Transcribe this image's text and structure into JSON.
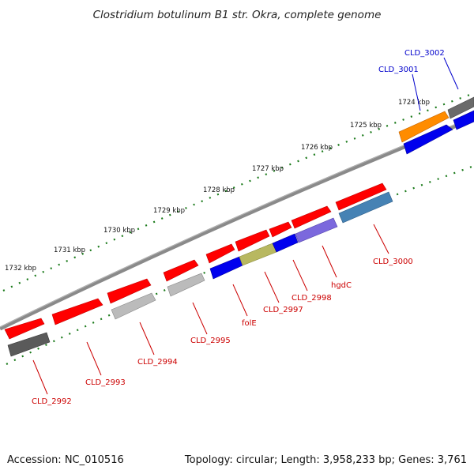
{
  "title": "Clostridium botulinum B1 str. Okra, complete genome",
  "footer": {
    "accession": "Accession: NC_010516",
    "summary": "Topology: circular; Length: 3,958,233 bp; Genes: 3,761"
  },
  "colors": {
    "backbone": "#7a7a7a",
    "tick": "#1a7a1a",
    "forward_cds": "#ff0000",
    "label_red": "#cc0000",
    "label_blue": "#0000cc",
    "dark_gray": "#555555",
    "light_gray": "#bbbbbb",
    "blue": "#0000ee",
    "olive": "#b8b860",
    "lavender": "#7b68dd",
    "steel_blue": "#4682b4",
    "orange": "#ff8c00"
  },
  "ruler": [
    {
      "label": "1724 kbp"
    },
    {
      "label": "1725 kbp"
    },
    {
      "label": "1726 kbp"
    },
    {
      "label": "1727 kbp"
    },
    {
      "label": "1728 kbp"
    },
    {
      "label": "1729 kbp"
    },
    {
      "label": "1730 kbp"
    },
    {
      "label": "1731 kbp"
    },
    {
      "label": "1732 kbp"
    }
  ],
  "labels": [
    {
      "text": "CLD_2992",
      "color": "label_red"
    },
    {
      "text": "CLD_2993",
      "color": "label_red"
    },
    {
      "text": "CLD_2994",
      "color": "label_red"
    },
    {
      "text": "CLD_2995",
      "color": "label_red"
    },
    {
      "text": "folE",
      "color": "label_red"
    },
    {
      "text": "CLD_2997",
      "color": "label_red"
    },
    {
      "text": "CLD_2998",
      "color": "label_red"
    },
    {
      "text": "hgdC",
      "color": "label_red"
    },
    {
      "text": "CLD_3000",
      "color": "label_red"
    },
    {
      "text": "CLD_3001",
      "color": "label_blue"
    },
    {
      "text": "CLD_3002",
      "color": "label_blue"
    }
  ]
}
